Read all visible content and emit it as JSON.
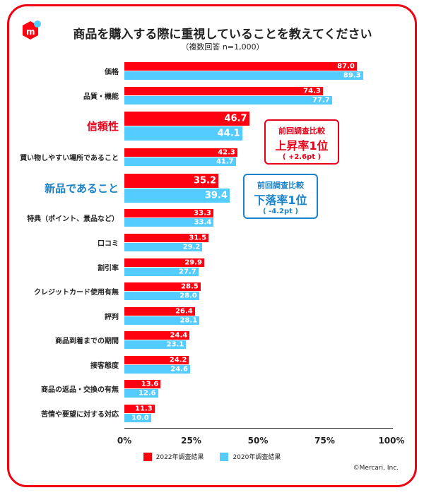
{
  "title": "商品を購入する際に重視していることを教えてください",
  "subtitle": "（複数回答 n=1,000）",
  "copyright": "©Mercari, Inc.",
  "colors": {
    "series2022": "#ff0011",
    "series2020": "#55ccff",
    "highlight_up": "#e8001a",
    "highlight_down": "#1a82c8"
  },
  "chart_data": {
    "type": "bar",
    "orientation": "horizontal",
    "xlim": [
      0,
      100
    ],
    "xticks": [
      "0%",
      "25%",
      "50%",
      "75%",
      "100%"
    ],
    "categories": [
      "価格",
      "品質・機能",
      "信頼性",
      "買い物しやすい場所であること",
      "新品であること",
      "特典（ポイント、景品など）",
      "口コミ",
      "割引率",
      "クレジットカード使用有無",
      "評判",
      "商品到着までの期間",
      "接客態度",
      "商品の返品・交換の有無",
      "苦情や要望に対する対応"
    ],
    "series": [
      {
        "name": "2022年調査結果",
        "values": [
          87.0,
          74.3,
          46.7,
          42.3,
          35.2,
          33.3,
          31.5,
          29.9,
          28.5,
          26.4,
          24.4,
          24.2,
          13.6,
          11.3
        ]
      },
      {
        "name": "2020年調査結果",
        "values": [
          89.3,
          77.7,
          44.1,
          41.7,
          39.4,
          33.4,
          29.2,
          27.7,
          28.0,
          28.1,
          23.1,
          24.6,
          12.6,
          10.0
        ]
      }
    ],
    "legend": "bottom"
  },
  "callouts": {
    "up": {
      "line1": "前回調査比較",
      "line2": "上昇率1位",
      "line3": "( +2.6pt )"
    },
    "down": {
      "line1": "前回調査比較",
      "line2": "下落率1位",
      "line3": "( -4.2pt )"
    }
  }
}
